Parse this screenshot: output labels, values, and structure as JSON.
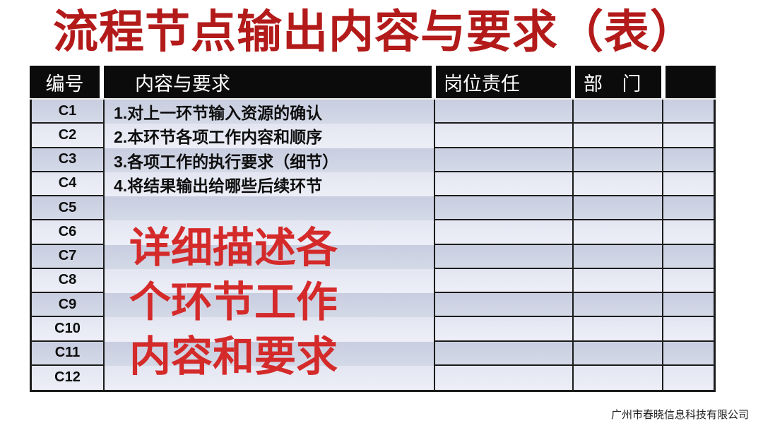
{
  "page": {
    "title": "流程节点输出内容与要求（表）",
    "footer_company": "广州市春晓信息科技有限公司"
  },
  "colors": {
    "title_red": "#b31a1a",
    "overlay_red": "#d42a2a",
    "header_bg": "#0b0b0b",
    "header_text": "#ffffff",
    "row_dark": "#cdd3e2",
    "row_light": "#e7eaf3",
    "border_black": "#1c1c1c"
  },
  "table": {
    "headers": [
      "编号",
      "内容与要求",
      "岗位责任",
      "部 门",
      ""
    ],
    "rows": [
      {
        "id": "C1",
        "content": "1.对上一环节输入资源的确认"
      },
      {
        "id": "C2",
        "content": "2.本环节各项工作内容和顺序"
      },
      {
        "id": "C3",
        "content": "3.各项工作的执行要求（细节）"
      },
      {
        "id": "C4",
        "content": "4.将结果输出给哪些后续环节"
      },
      {
        "id": "C5",
        "content": ""
      },
      {
        "id": "C6",
        "content": ""
      },
      {
        "id": "C7",
        "content": ""
      },
      {
        "id": "C8",
        "content": ""
      },
      {
        "id": "C9",
        "content": ""
      },
      {
        "id": "C10",
        "content": ""
      },
      {
        "id": "C11",
        "content": ""
      },
      {
        "id": "C12",
        "content": ""
      }
    ]
  },
  "overlay": {
    "lines": [
      "详细描述各",
      "个环节工作",
      "内容和要求"
    ]
  }
}
